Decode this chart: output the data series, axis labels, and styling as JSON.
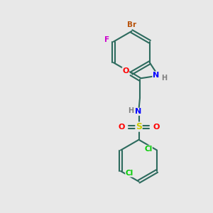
{
  "background_color": "#e8e8e8",
  "bond_color": "#2d6b5e",
  "atom_colors": {
    "Br": "#b8520a",
    "F": "#cc00cc",
    "O": "#ff0000",
    "N": "#0000ff",
    "S": "#cccc00",
    "Cl": "#00cc00",
    "H": "#808080"
  },
  "figsize": [
    3.0,
    3.0
  ],
  "dpi": 100
}
